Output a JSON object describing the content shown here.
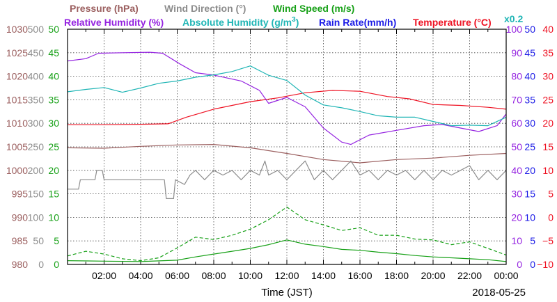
{
  "chart_data": {
    "type": "line",
    "title_row1": [
      {
        "text": "Pressure (hPa)",
        "color": "#9b5f5f"
      },
      {
        "text": "Wind Direction (°)",
        "color": "#8c8c8c"
      },
      {
        "text": "Wind Speed (m/s)",
        "color": "#16a016"
      }
    ],
    "title_row2": [
      {
        "text": "Relative Humidity (%)",
        "color": "#9422e0"
      },
      {
        "text": "Absolute Humidity (g/m",
        "sup": "3",
        "tail": ")",
        "color": "#1fb5b5"
      },
      {
        "text": "Rain Rate(mm/h)",
        "color": "#1a1ae6"
      },
      {
        "text": "Temperature (°C)",
        "color": "#ee1122"
      }
    ],
    "scale_note": "x0.2",
    "xlabel": "Time (JST)",
    "date_label": "2018-05-25",
    "x_range_hours": [
      0,
      24
    ],
    "x_ticks": [
      "02:00",
      "04:00",
      "06:00",
      "08:00",
      "10:00",
      "12:00",
      "14:00",
      "16:00",
      "18:00",
      "20:00",
      "22:00",
      "00:00"
    ],
    "axes": {
      "pressure": {
        "color": "#9b5f5f",
        "range": [
          980,
          1030
        ],
        "ticks": [
          "1030",
          "1025",
          "1020",
          "1015",
          "1010",
          "1005",
          "1000",
          "995",
          "990",
          "985",
          "980"
        ]
      },
      "wind_direction": {
        "color": "#8c8c8c",
        "range": [
          0,
          500
        ],
        "ticks": [
          "500",
          "450",
          "400",
          "350",
          "300",
          "250",
          "200",
          "150",
          "100",
          "50",
          "0"
        ]
      },
      "wind_speed": {
        "color": "#16a016",
        "range": [
          0,
          50
        ],
        "ticks": [
          "50",
          "45",
          "40",
          "35",
          "30",
          "25",
          "20",
          "15",
          "10",
          "5",
          "0"
        ]
      },
      "relative_humidity": {
        "color": "#9422e0",
        "range": [
          0,
          100
        ],
        "ticks": [
          "100",
          "90",
          "80",
          "70",
          "60",
          "50",
          "40",
          "30",
          "20",
          "10",
          "0"
        ]
      },
      "rain_rate": {
        "color": "#1a1ae6",
        "range": [
          0,
          50
        ],
        "ticks": [
          "50",
          "45",
          "40",
          "35",
          "30",
          "25",
          "20",
          "15",
          "10",
          "5",
          "0"
        ]
      },
      "temperature": {
        "color": "#ee1122",
        "range": [
          -10,
          40
        ],
        "ticks": [
          "40",
          "35",
          "30",
          "25",
          "20",
          "15",
          "10",
          "5",
          "0",
          "−5",
          "−10"
        ]
      }
    },
    "series": [
      {
        "name": "Pressure (hPa)",
        "axis": "pressure",
        "color": "#9b5f5f",
        "points": [
          [
            0,
            1004.8
          ],
          [
            2,
            1004.7
          ],
          [
            4,
            1005.1
          ],
          [
            6,
            1005.4
          ],
          [
            8,
            1005.5
          ],
          [
            10,
            1004.8
          ],
          [
            12,
            1003.6
          ],
          [
            14,
            1002.3
          ],
          [
            16,
            1001.6
          ],
          [
            18,
            1002.3
          ],
          [
            20,
            1002.6
          ],
          [
            22,
            1003.2
          ],
          [
            24,
            1003.6
          ]
        ]
      },
      {
        "name": "Temperature (°C)",
        "axis": "temperature",
        "color": "#ee1122",
        "points": [
          [
            0,
            19.7
          ],
          [
            2,
            19.7
          ],
          [
            4,
            19.8
          ],
          [
            5.5,
            19.9
          ],
          [
            6.5,
            21.3
          ],
          [
            8,
            23.0
          ],
          [
            10,
            24.6
          ],
          [
            11.5,
            25.4
          ],
          [
            13,
            26.5
          ],
          [
            14.5,
            27.0
          ],
          [
            16,
            26.8
          ],
          [
            17.5,
            25.7
          ],
          [
            18.7,
            25.2
          ],
          [
            20,
            24.0
          ],
          [
            21.5,
            23.8
          ],
          [
            23,
            23.4
          ],
          [
            24,
            23.0
          ]
        ]
      },
      {
        "name": "Relative Humidity (%)",
        "axis": "relative_humidity",
        "color": "#9422e0",
        "points": [
          [
            0,
            86.5
          ],
          [
            1,
            87.5
          ],
          [
            1.7,
            89.8
          ],
          [
            3,
            90.0
          ],
          [
            4.5,
            90.2
          ],
          [
            5.2,
            89.8
          ],
          [
            6.2,
            85.0
          ],
          [
            7,
            81.5
          ],
          [
            8,
            80.5
          ],
          [
            9.5,
            78.0
          ],
          [
            10.5,
            74.0
          ],
          [
            11,
            68.5
          ],
          [
            12,
            71.0
          ],
          [
            13,
            67.0
          ],
          [
            14,
            58.0
          ],
          [
            15,
            52.0
          ],
          [
            15.5,
            51.0
          ],
          [
            16.5,
            55.0
          ],
          [
            18,
            57.0
          ],
          [
            19.5,
            59.0
          ],
          [
            20.5,
            59.5
          ],
          [
            21.5,
            58.0
          ],
          [
            22.5,
            56.5
          ],
          [
            23.5,
            59.0
          ],
          [
            24,
            64.0
          ]
        ]
      },
      {
        "name": "Absolute Humidity (g/m3)",
        "axis": "rain_rate",
        "color": "#1fb5b5",
        "points": [
          [
            0,
            36.7
          ],
          [
            1,
            37.2
          ],
          [
            2,
            37.6
          ],
          [
            3,
            36.6
          ],
          [
            4,
            37.5
          ],
          [
            5,
            38.5
          ],
          [
            6,
            39.0
          ],
          [
            7,
            39.8
          ],
          [
            8,
            40.3
          ],
          [
            9,
            41.0
          ],
          [
            10,
            42.2
          ],
          [
            11,
            40.2
          ],
          [
            12,
            39.1
          ],
          [
            13,
            36.0
          ],
          [
            14,
            33.9
          ],
          [
            15,
            33.3
          ],
          [
            16,
            32.5
          ],
          [
            17,
            31.6
          ],
          [
            18,
            31.3
          ],
          [
            19,
            31.3
          ],
          [
            20,
            30.4
          ],
          [
            21,
            29.5
          ],
          [
            22,
            29.6
          ],
          [
            23,
            29.5
          ],
          [
            24,
            31.3
          ]
        ]
      },
      {
        "name": "Wind Direction (°)",
        "axis": "wind_direction",
        "color": "#8c8c8c",
        "points": [
          [
            0,
            160
          ],
          [
            0.6,
            160
          ],
          [
            0.7,
            180
          ],
          [
            1.5,
            180
          ],
          [
            1.6,
            200
          ],
          [
            1.9,
            200
          ],
          [
            2,
            180
          ],
          [
            5.3,
            180
          ],
          [
            5.4,
            140
          ],
          [
            5.8,
            140
          ],
          [
            5.9,
            180
          ],
          [
            6.4,
            170
          ],
          [
            6.7,
            190
          ],
          [
            7,
            200
          ],
          [
            7.5,
            180
          ],
          [
            8,
            200
          ],
          [
            8.5,
            190
          ],
          [
            9,
            200
          ],
          [
            9.5,
            180
          ],
          [
            10,
            200
          ],
          [
            10.5,
            190
          ],
          [
            10.8,
            220
          ],
          [
            11,
            190
          ],
          [
            11.5,
            200
          ],
          [
            12,
            180
          ],
          [
            12.5,
            200
          ],
          [
            13,
            220
          ],
          [
            13.5,
            180
          ],
          [
            14,
            200
          ],
          [
            14.5,
            180
          ],
          [
            15,
            200
          ],
          [
            15.5,
            220
          ],
          [
            16,
            190
          ],
          [
            16.5,
            200
          ],
          [
            17,
            180
          ],
          [
            17.5,
            200
          ],
          [
            18,
            190
          ],
          [
            18.5,
            200
          ],
          [
            19,
            180
          ],
          [
            19.5,
            200
          ],
          [
            20,
            180
          ],
          [
            20.5,
            200
          ],
          [
            21,
            190
          ],
          [
            21.5,
            200
          ],
          [
            22,
            210
          ],
          [
            22.5,
            180
          ],
          [
            23,
            200
          ],
          [
            23.5,
            180
          ],
          [
            24,
            200
          ]
        ]
      },
      {
        "name": "Wind Speed (m/s) - mean",
        "axis": "wind_speed",
        "color": "#16a016",
        "points": [
          [
            0,
            0.8
          ],
          [
            2,
            0.7
          ],
          [
            4,
            0.6
          ],
          [
            6,
            0.9
          ],
          [
            7,
            1.6
          ],
          [
            8,
            2.2
          ],
          [
            9,
            2.8
          ],
          [
            10,
            3.4
          ],
          [
            11,
            4.2
          ],
          [
            12,
            5.2
          ],
          [
            13,
            4.3
          ],
          [
            14,
            3.8
          ],
          [
            15,
            3.2
          ],
          [
            16,
            3.0
          ],
          [
            17,
            2.6
          ],
          [
            18,
            2.3
          ],
          [
            19,
            1.9
          ],
          [
            20,
            1.6
          ],
          [
            21,
            1.4
          ],
          [
            22,
            1.2
          ],
          [
            23,
            1.0
          ],
          [
            24,
            0.6
          ]
        ]
      },
      {
        "name": "Wind Speed (m/s) - gust",
        "axis": "wind_speed",
        "color": "#16a016",
        "dashed": true,
        "points": [
          [
            0,
            1.8
          ],
          [
            1,
            2.8
          ],
          [
            2,
            2.2
          ],
          [
            3,
            1.2
          ],
          [
            4,
            0.8
          ],
          [
            5,
            1.4
          ],
          [
            6,
            3.5
          ],
          [
            7,
            5.8
          ],
          [
            8,
            5.3
          ],
          [
            9,
            6.2
          ],
          [
            10,
            7.5
          ],
          [
            11,
            9.5
          ],
          [
            12,
            12.2
          ],
          [
            13,
            9.5
          ],
          [
            14,
            8.4
          ],
          [
            15,
            7.2
          ],
          [
            16,
            7.8
          ],
          [
            17,
            6.2
          ],
          [
            18,
            6.2
          ],
          [
            19,
            5.4
          ],
          [
            20,
            5.2
          ],
          [
            21,
            4.2
          ],
          [
            22,
            4.8
          ],
          [
            23,
            3.4
          ],
          [
            24,
            2.0
          ]
        ]
      }
    ]
  }
}
